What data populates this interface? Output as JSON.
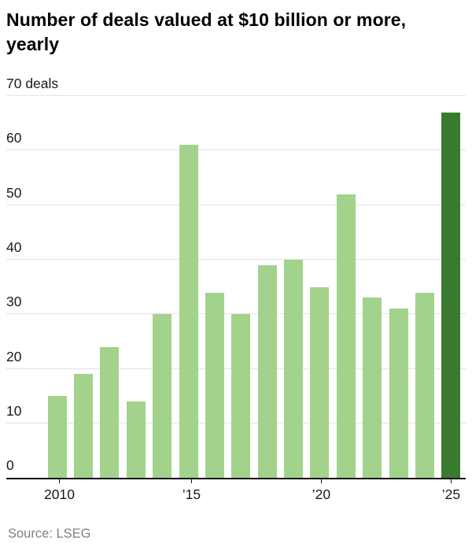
{
  "header": {
    "title": "Number of deals valued at $10 billion or more, yearly"
  },
  "chart_data": {
    "type": "bar",
    "title": "Number of deals valued at $10 billion or more, yearly",
    "categories": [
      2010,
      2011,
      2012,
      2013,
      2014,
      2015,
      2016,
      2017,
      2018,
      2019,
      2020,
      2021,
      2022,
      2023,
      2024,
      2025
    ],
    "values": [
      15,
      19,
      24,
      14,
      30,
      61,
      34,
      30,
      39,
      40,
      35,
      52,
      33,
      31,
      34,
      67
    ],
    "xlabel": "",
    "ylabel": "deals",
    "ylim": [
      0,
      70
    ],
    "yticks": [
      {
        "value": 0,
        "label": "0"
      },
      {
        "value": 10,
        "label": "10"
      },
      {
        "value": 20,
        "label": "20"
      },
      {
        "value": 30,
        "label": "30"
      },
      {
        "value": 40,
        "label": "40"
      },
      {
        "value": 50,
        "label": "50"
      },
      {
        "value": 60,
        "label": "60"
      },
      {
        "value": 70,
        "label": "70 deals"
      }
    ],
    "x_tick_labels": [
      "2010",
      "",
      "",
      "",
      "",
      "’15",
      "",
      "",
      "",
      "",
      "’20",
      "",
      "",
      "",
      "",
      "’25"
    ],
    "grid": true,
    "legend": "none",
    "highlight_index": 15,
    "colors": {
      "bar": "#a2d28c",
      "highlight_bar": "#3a7a30",
      "gridline": "#e3e3e3",
      "axis": "#121212"
    }
  },
  "footer": {
    "source": "Source: LSEG"
  }
}
